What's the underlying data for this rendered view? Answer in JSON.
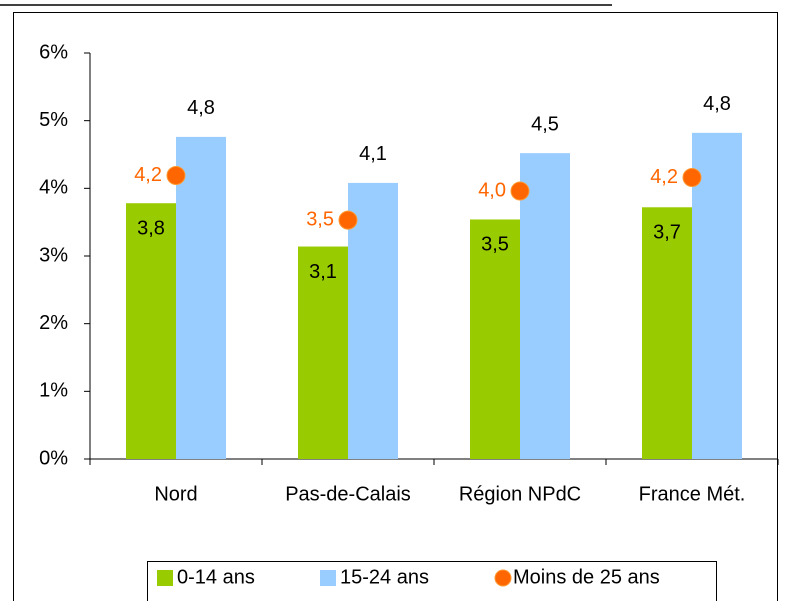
{
  "chart_data": {
    "type": "bar",
    "categories": [
      "Nord",
      "Pas-de-Calais",
      "Région NPdC",
      "France Mét."
    ],
    "series": [
      {
        "name": "0-14 ans",
        "color": "#99cc00",
        "values": [
          3.78,
          3.14,
          3.54,
          3.72
        ],
        "value_labels": [
          "3,8",
          "3,1",
          "3,5",
          "3,7"
        ]
      },
      {
        "name": "15-24 ans",
        "color": "#99ccff",
        "values": [
          4.76,
          4.08,
          4.52,
          4.82
        ],
        "value_labels": [
          "4,8",
          "4,1",
          "4,5",
          "4,8"
        ]
      },
      {
        "name": "Moins de 25 ans",
        "color": "#ff6600",
        "type": "scatter",
        "values": [
          4.19,
          3.53,
          3.96,
          4.16
        ],
        "value_labels": [
          "4,2",
          "3,5",
          "4,0",
          "4,2"
        ]
      }
    ],
    "ylim": [
      0,
      6
    ],
    "yticks": [
      {
        "value": 0,
        "label": "0%"
      },
      {
        "value": 1,
        "label": "1%"
      },
      {
        "value": 2,
        "label": "2%"
      },
      {
        "value": 3,
        "label": "3%"
      },
      {
        "value": 4,
        "label": "4%"
      },
      {
        "value": 5,
        "label": "5%"
      },
      {
        "value": 6,
        "label": "6%"
      }
    ],
    "legend": "bottom"
  }
}
